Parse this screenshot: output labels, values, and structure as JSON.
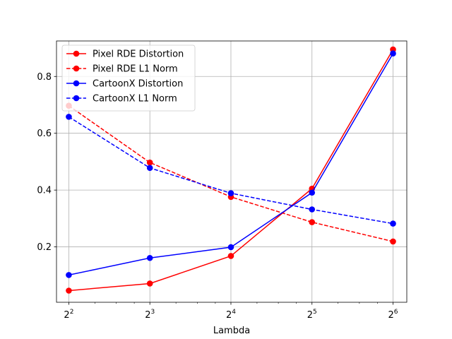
{
  "chart_data": {
    "type": "line",
    "title": "",
    "xlabel": "Lambda",
    "ylabel": "",
    "x": [
      4,
      8,
      16,
      32,
      64
    ],
    "x_tick_labels": [
      {
        "base": "2",
        "exp": "2"
      },
      {
        "base": "2",
        "exp": "3"
      },
      {
        "base": "2",
        "exp": "4"
      },
      {
        "base": "2",
        "exp": "5"
      },
      {
        "base": "2",
        "exp": "6"
      }
    ],
    "x_scale": "log2",
    "xlim": [
      3.6,
      72
    ],
    "ylim": [
      0.005,
      0.925
    ],
    "y_ticks": [
      "0.2",
      "0.4",
      "0.6",
      "0.8"
    ],
    "y_tick_values": [
      0.2,
      0.4,
      0.6,
      0.8
    ],
    "grid": true,
    "legend_position": "top-left",
    "series": [
      {
        "name": "Pixel RDE Distortion",
        "color": "#ff0000",
        "dash": "solid",
        "values": [
          0.046,
          0.071,
          0.168,
          0.405,
          0.895
        ]
      },
      {
        "name": "Pixel RDE L1 Norm",
        "color": "#ff0000",
        "dash": "dashed",
        "values": [
          0.697,
          0.497,
          0.376,
          0.287,
          0.219
        ]
      },
      {
        "name": "CartoonX Distortion",
        "color": "#0000ff",
        "dash": "solid",
        "values": [
          0.101,
          0.161,
          0.199,
          0.391,
          0.881
        ]
      },
      {
        "name": "CartoonX L1 Norm",
        "color": "#0000ff",
        "dash": "dashed",
        "values": [
          0.658,
          0.478,
          0.389,
          0.332,
          0.282
        ]
      }
    ]
  }
}
